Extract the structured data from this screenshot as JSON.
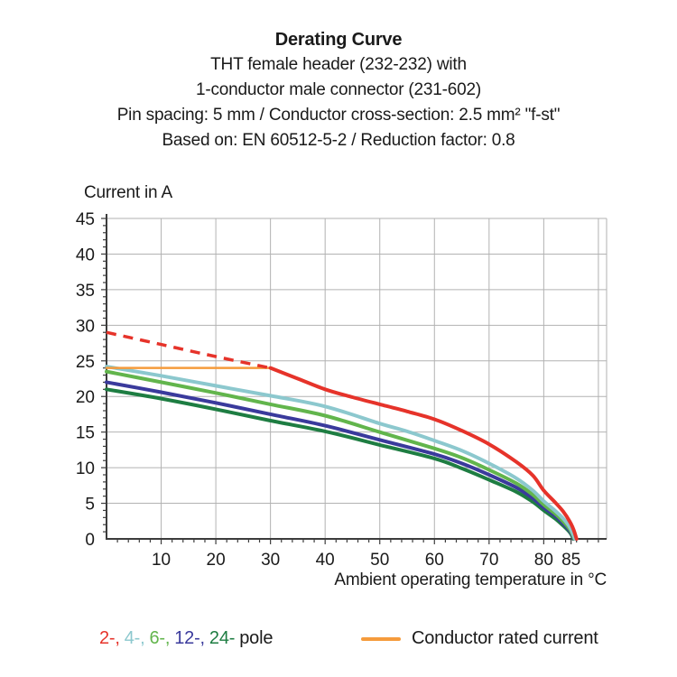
{
  "header": {
    "title": "Derating Curve",
    "line2": "THT female header (232-232) with",
    "line3": "1-conductor male connector (231-602)",
    "line4": "Pin spacing: 5 mm / Conductor cross-section: 2.5 mm² \"f-st\"",
    "line5": "Based on: EN 60512-5-2 / Reduction factor: 0.8"
  },
  "chart_data": {
    "type": "line",
    "title": "Derating Curve",
    "xlabel": "Ambient operating temperature in °C",
    "ylabel": "Current in A",
    "xlim": [
      0,
      91.5
    ],
    "ylim": [
      0,
      45
    ],
    "x_major_ticks": [
      10,
      20,
      30,
      40,
      50,
      60,
      70,
      80,
      85
    ],
    "x_gridlines": [
      10,
      20,
      30,
      40,
      50,
      60,
      70,
      80,
      90
    ],
    "y_ticks": [
      0,
      5,
      10,
      15,
      20,
      25,
      30,
      35,
      40,
      45
    ],
    "x_minor_step": 2,
    "y_minor_step": 1,
    "grid": true,
    "grid_color": "#b2b2b2",
    "axis_color": "#3c3c3c",
    "legend_position": "bottom",
    "rated_current_A": 24,
    "series": [
      {
        "name": "24-pole",
        "color": "#1e7d42",
        "width": 4,
        "dashed": false,
        "points": [
          [
            0,
            21.0
          ],
          [
            10,
            19.7
          ],
          [
            20,
            18.2
          ],
          [
            30,
            16.6
          ],
          [
            40,
            15.1
          ],
          [
            50,
            13.2
          ],
          [
            60,
            11.3
          ],
          [
            65,
            9.9
          ],
          [
            70,
            8.3
          ],
          [
            75,
            6.6
          ],
          [
            78,
            5.2
          ],
          [
            80,
            4.0
          ],
          [
            82,
            2.9
          ],
          [
            83.5,
            1.9
          ],
          [
            84.8,
            0.9
          ],
          [
            85.4,
            0
          ]
        ]
      },
      {
        "name": "12-pole",
        "color": "#3a3a9c",
        "width": 4,
        "dashed": false,
        "points": [
          [
            0,
            22.0
          ],
          [
            10,
            20.6
          ],
          [
            20,
            19.1
          ],
          [
            30,
            17.5
          ],
          [
            40,
            15.9
          ],
          [
            50,
            13.9
          ],
          [
            60,
            11.9
          ],
          [
            65,
            10.6
          ],
          [
            70,
            9.0
          ],
          [
            75,
            7.2
          ],
          [
            78,
            5.7
          ],
          [
            80,
            4.4
          ],
          [
            82,
            3.3
          ],
          [
            83.5,
            2.2
          ],
          [
            84.8,
            1.1
          ],
          [
            85.5,
            0
          ]
        ]
      },
      {
        "name": "6-pole",
        "color": "#62b54c",
        "width": 4,
        "dashed": false,
        "points": [
          [
            0,
            23.5
          ],
          [
            10,
            22.0
          ],
          [
            20,
            20.5
          ],
          [
            30,
            18.9
          ],
          [
            40,
            17.3
          ],
          [
            50,
            15.0
          ],
          [
            60,
            12.7
          ],
          [
            65,
            11.4
          ],
          [
            70,
            9.7
          ],
          [
            75,
            7.8
          ],
          [
            78,
            6.2
          ],
          [
            80,
            4.8
          ],
          [
            82,
            3.6
          ],
          [
            83.5,
            2.5
          ],
          [
            84.8,
            1.3
          ],
          [
            85.6,
            0
          ]
        ]
      },
      {
        "name": "4-pole",
        "color": "#8cc8ce",
        "width": 4,
        "dashed": false,
        "points": [
          [
            0,
            24.2
          ],
          [
            10,
            22.9
          ],
          [
            20,
            21.5
          ],
          [
            30,
            20.1
          ],
          [
            40,
            18.6
          ],
          [
            50,
            16.2
          ],
          [
            55,
            15.1
          ],
          [
            60,
            13.8
          ],
          [
            65,
            12.4
          ],
          [
            70,
            10.6
          ],
          [
            75,
            8.5
          ],
          [
            78,
            6.8
          ],
          [
            80,
            5.3
          ],
          [
            82,
            4.0
          ],
          [
            83.5,
            2.9
          ],
          [
            84.8,
            1.6
          ],
          [
            85.7,
            0
          ]
        ]
      },
      {
        "name": "Conductor rated current",
        "color": "#f59b3c",
        "width": 2.5,
        "dashed": false,
        "points": [
          [
            0,
            24
          ],
          [
            30,
            24
          ]
        ]
      },
      {
        "name": "2-pole (conductor limited)",
        "color": "#e6332a",
        "width": 3.5,
        "dashed": true,
        "points": [
          [
            0,
            29
          ],
          [
            10,
            27.3
          ],
          [
            20,
            25.6
          ],
          [
            30,
            24
          ]
        ]
      },
      {
        "name": "2-pole",
        "color": "#e6332a",
        "width": 4,
        "dashed": false,
        "points": [
          [
            30,
            24
          ],
          [
            35,
            22.5
          ],
          [
            40,
            21.0
          ],
          [
            45,
            19.9
          ],
          [
            50,
            18.9
          ],
          [
            55,
            17.9
          ],
          [
            60,
            16.8
          ],
          [
            65,
            15.2
          ],
          [
            70,
            13.3
          ],
          [
            75,
            10.8
          ],
          [
            78,
            8.9
          ],
          [
            80,
            6.8
          ],
          [
            82,
            5.2
          ],
          [
            83.5,
            3.9
          ],
          [
            84.8,
            2.4
          ],
          [
            85.5,
            1.2
          ],
          [
            86,
            0
          ]
        ]
      }
    ]
  },
  "legend": {
    "poles": [
      {
        "label": "2-",
        "color": "#e6332a"
      },
      {
        "label": "4-",
        "color": "#8cc8ce"
      },
      {
        "label": "6-",
        "color": "#62b54c"
      },
      {
        "label": "12-",
        "color": "#3a3a9c"
      },
      {
        "label": "24-",
        "color": "#1e7d42"
      }
    ],
    "poles_separator": ",",
    "poles_suffix": "pole",
    "rated_label": "Conductor rated current",
    "rated_color": "#f59b3c"
  }
}
